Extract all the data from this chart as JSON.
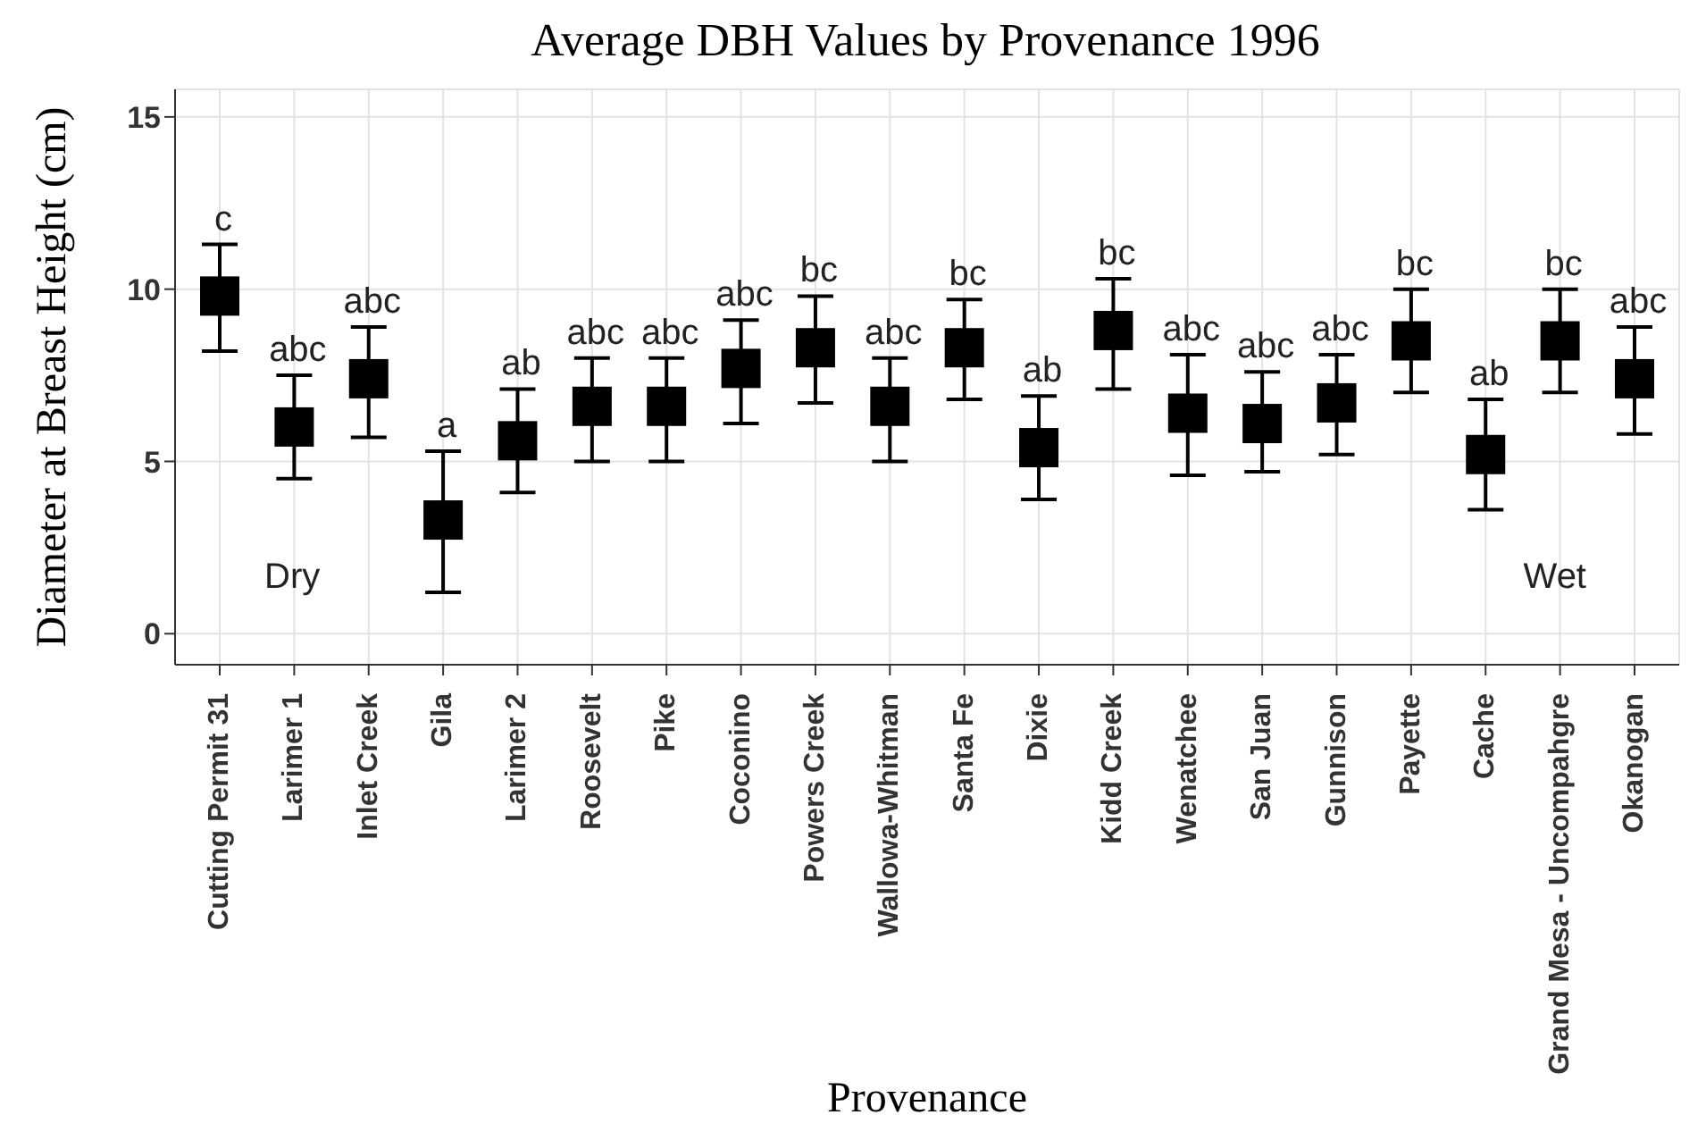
{
  "chart_data": {
    "type": "scatter",
    "title": "Average DBH Values by Provenance 1996",
    "xlabel": "Provenance",
    "ylabel": "Diameter at Breast Height (cm)",
    "categories": [
      "Cutting Permit 31",
      "Larimer 1",
      "Inlet Creek",
      "Gila",
      "Larimer 2",
      "Roosevelt",
      "Pike",
      "Coconino",
      "Powers Creek",
      "Wallowa-Whitman",
      "Santa Fe",
      "Dixie",
      "Kidd Creek",
      "Wenatchee",
      "San Juan",
      "Gunnison",
      "Payette",
      "Cache",
      "Grand Mesa - Uncompahgre",
      "Okanogan"
    ],
    "series": [
      {
        "color": "#000000",
        "values": [
          9.8,
          6.0,
          7.4,
          3.3,
          5.6,
          6.6,
          6.6,
          7.7,
          8.3,
          6.6,
          8.3,
          5.4,
          8.8,
          6.4,
          6.1,
          6.7,
          8.5,
          5.2,
          8.5,
          7.4
        ],
        "errors": [
          [
            8.2,
            11.3
          ],
          [
            4.5,
            7.5
          ],
          [
            5.7,
            8.9
          ],
          [
            1.2,
            5.3
          ],
          [
            4.1,
            7.1
          ],
          [
            5.0,
            8.0
          ],
          [
            5.0,
            8.0
          ],
          [
            6.1,
            9.1
          ],
          [
            6.7,
            9.8
          ],
          [
            5.0,
            8.0
          ],
          [
            6.8,
            9.7
          ],
          [
            3.9,
            6.9
          ],
          [
            7.1,
            10.3
          ],
          [
            4.6,
            8.1
          ],
          [
            4.7,
            7.6
          ],
          [
            5.2,
            8.1
          ],
          [
            7.0,
            10.0
          ],
          [
            3.6,
            6.8
          ],
          [
            7.0,
            10.0
          ],
          [
            5.8,
            8.9
          ]
        ],
        "value_labels": [
          "c",
          "abc",
          "abc",
          "a",
          "ab",
          "abc",
          "abc",
          "abc",
          "bc",
          "abc",
          "bc",
          "ab",
          "bc",
          "abc",
          "abc",
          "abc",
          "bc",
          "ab",
          "bc",
          "abc"
        ]
      }
    ],
    "marker": "square",
    "ylim": [
      -0.9,
      15.8
    ],
    "yticks": [
      0,
      5,
      10,
      15
    ],
    "grid": true,
    "legend": false,
    "annotations": [
      "Dry",
      "Wet"
    ]
  }
}
